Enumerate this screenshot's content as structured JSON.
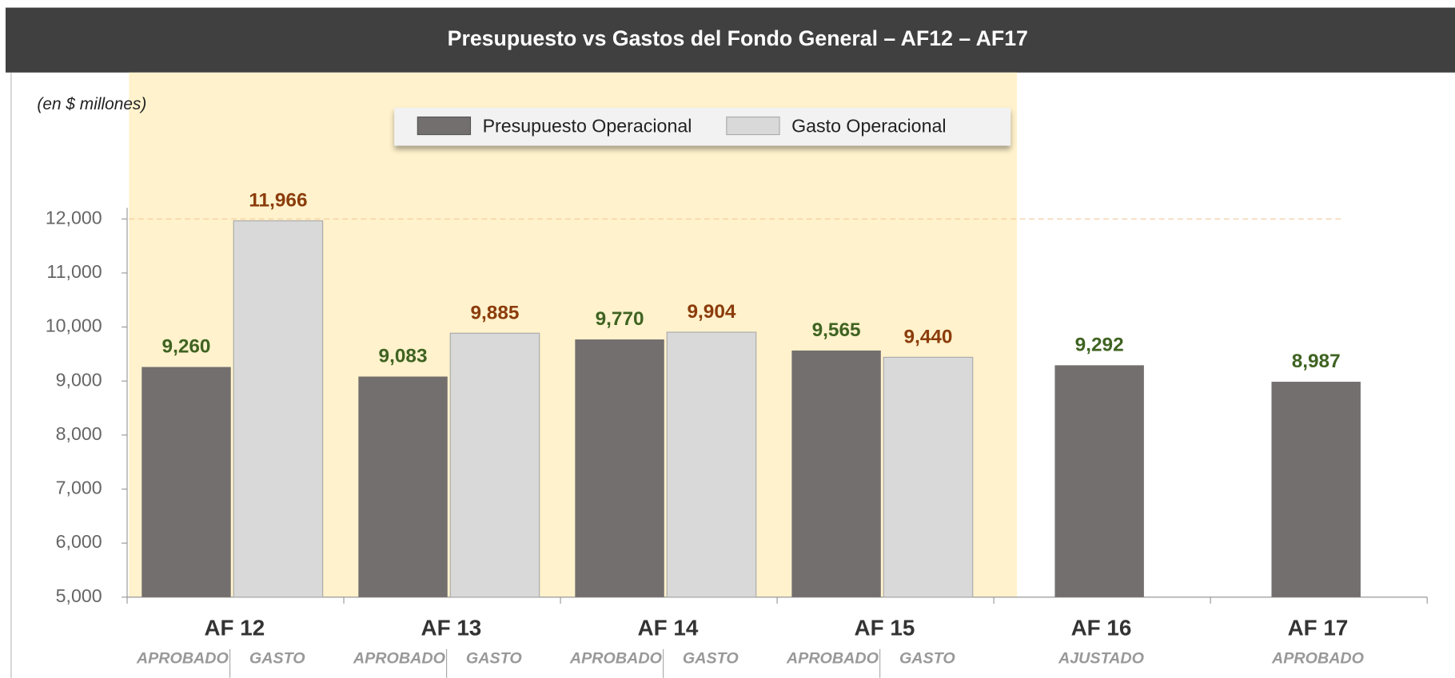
{
  "chart_data": {
    "type": "bar",
    "title": "Presupuesto vs Gastos del Fondo General – AF12 – AF17",
    "subtitle": "(en $ millones)",
    "categories": [
      "AF 12",
      "AF 13",
      "AF 14",
      "AF 15",
      "AF 16",
      "AF 17"
    ],
    "sublabels": [
      [
        "APROBADO",
        "GASTO"
      ],
      [
        "APROBADO",
        "GASTO"
      ],
      [
        "APROBADO",
        "GASTO"
      ],
      [
        "APROBADO",
        "GASTO"
      ],
      [
        "AJUSTADO"
      ],
      [
        "APROBADO"
      ]
    ],
    "series": [
      {
        "name": "Presupuesto Operacional",
        "color": "#736f6e",
        "label_color": "#3f6322",
        "values": [
          9260,
          9083,
          9770,
          9565,
          9292,
          8987
        ],
        "value_labels": [
          "9,260",
          "9,083",
          "9,770",
          "9,565",
          "9,292",
          "8,987"
        ]
      },
      {
        "name": "Gasto Operacional",
        "color": "#d9d9d9",
        "label_color": "#8b3c0b",
        "values": [
          11966,
          9885,
          9904,
          9440,
          null,
          null
        ],
        "value_labels": [
          "11,966",
          "9,885",
          "9,904",
          "9,440",
          null,
          null
        ]
      }
    ],
    "ylim": [
      5000,
      12000
    ],
    "yticks": [
      {
        "value": 5000,
        "label": "5,000"
      },
      {
        "value": 6000,
        "label": "6,000"
      },
      {
        "value": 7000,
        "label": "7,000"
      },
      {
        "value": 8000,
        "label": "8,000"
      },
      {
        "value": 9000,
        "label": "9,000"
      },
      {
        "value": 10000,
        "label": "10,000"
      },
      {
        "value": 11000,
        "label": "11,000"
      },
      {
        "value": 12000,
        "label": "12,000"
      }
    ]
  }
}
